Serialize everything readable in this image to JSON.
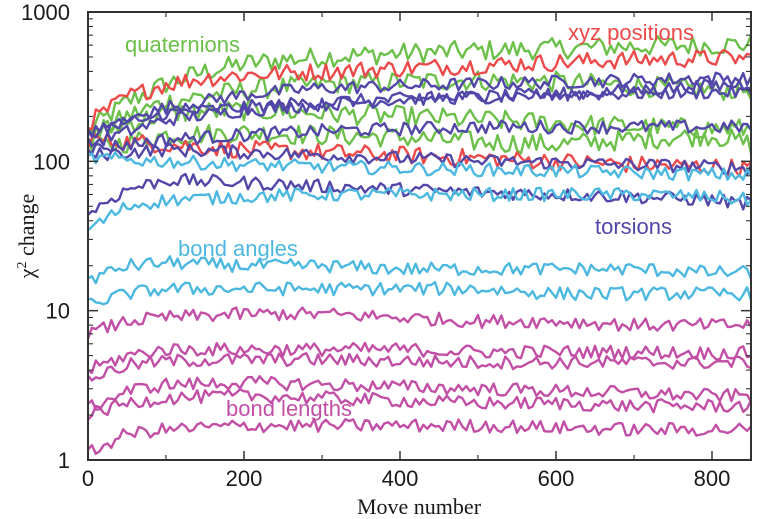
{
  "chart_data": {
    "type": "line",
    "xlabel": "Move number",
    "ylabel_base": "χ",
    "ylabel_sup": "2",
    "ylabel_rest": " change",
    "xlim": [
      0,
      850
    ],
    "ylim": [
      1,
      1000
    ],
    "yscale": "log",
    "grid": false,
    "x_ticks": [
      0,
      200,
      400,
      600,
      800
    ],
    "x_tick_labels": [
      "0",
      "200",
      "400",
      "600",
      "800"
    ],
    "y_ticks": [
      1,
      10,
      100,
      1000
    ],
    "y_tick_labels": [
      "1",
      "10",
      "100",
      "1000"
    ],
    "groups": [
      {
        "label": "quaternions",
        "color": "#6cc04a"
      },
      {
        "label": "xyz positions",
        "color": "#ec4a4a"
      },
      {
        "label": "torsions",
        "color": "#5247a8"
      },
      {
        "label": "bond angles",
        "color": "#4cb8e0"
      },
      {
        "label": "bond lengths",
        "color": "#c24fa6"
      }
    ],
    "series": [
      {
        "group": "quaternions",
        "x": [
          0,
          50,
          100,
          150,
          200,
          250,
          300,
          400,
          500,
          600,
          700,
          800,
          850
        ],
        "values": [
          160,
          250,
          330,
          400,
          450,
          480,
          500,
          530,
          550,
          570,
          590,
          600,
          610
        ]
      },
      {
        "group": "quaternions",
        "x": [
          0,
          50,
          100,
          200,
          300,
          400,
          500,
          600,
          700,
          800,
          850
        ],
        "values": [
          140,
          200,
          250,
          300,
          330,
          340,
          350,
          340,
          320,
          300,
          300
        ]
      },
      {
        "group": "quaternions",
        "x": [
          0,
          100,
          200,
          300,
          400,
          500,
          600,
          700,
          800,
          850
        ],
        "values": [
          120,
          150,
          155,
          150,
          145,
          135,
          130,
          140,
          150,
          130
        ]
      },
      {
        "group": "quaternions",
        "x": [
          0,
          100,
          200,
          300,
          400,
          500,
          600,
          700,
          800,
          850
        ],
        "values": [
          150,
          210,
          220,
          210,
          200,
          190,
          180,
          170,
          165,
          165
        ]
      },
      {
        "group": "xyz positions",
        "x": [
          0,
          50,
          100,
          150,
          200,
          300,
          400,
          500,
          600,
          700,
          800,
          850
        ],
        "values": [
          180,
          270,
          330,
          360,
          380,
          400,
          420,
          440,
          460,
          480,
          490,
          490
        ]
      },
      {
        "group": "xyz positions",
        "x": [
          0,
          100,
          200,
          300,
          400,
          500,
          600,
          700,
          800,
          850
        ],
        "values": [
          140,
          130,
          120,
          115,
          110,
          105,
          100,
          95,
          92,
          90
        ]
      },
      {
        "group": "torsions",
        "x": [
          0,
          100,
          200,
          300,
          400,
          500,
          600,
          700,
          800,
          850
        ],
        "values": [
          150,
          230,
          280,
          310,
          320,
          330,
          340,
          350,
          360,
          360
        ]
      },
      {
        "group": "torsions",
        "x": [
          0,
          100,
          200,
          300,
          400,
          500,
          600,
          700,
          800,
          850
        ],
        "values": [
          130,
          190,
          220,
          240,
          260,
          270,
          280,
          285,
          290,
          290
        ]
      },
      {
        "group": "torsions",
        "x": [
          0,
          100,
          200,
          300,
          400,
          500,
          600,
          700,
          800,
          850
        ],
        "values": [
          160,
          210,
          230,
          250,
          260,
          270,
          280,
          300,
          320,
          330
        ]
      },
      {
        "group": "torsions",
        "x": [
          0,
          100,
          200,
          300,
          400,
          500,
          600,
          700,
          800,
          850
        ],
        "values": [
          120,
          140,
          150,
          160,
          165,
          170,
          170,
          170,
          170,
          170
        ]
      },
      {
        "group": "torsions",
        "x": [
          0,
          100,
          200,
          300,
          400,
          500,
          600,
          700,
          800,
          850
        ],
        "values": [
          110,
          120,
          115,
          110,
          105,
          100,
          98,
          95,
          92,
          90
        ]
      },
      {
        "group": "torsions",
        "x": [
          0,
          50,
          100,
          200,
          300,
          400,
          500,
          600,
          700,
          800,
          850
        ],
        "values": [
          45,
          65,
          75,
          72,
          68,
          65,
          62,
          60,
          58,
          55,
          52
        ]
      },
      {
        "group": "bond angles",
        "x": [
          0,
          100,
          200,
          300,
          400,
          500,
          600,
          700,
          800,
          850
        ],
        "values": [
          105,
          100,
          95,
          92,
          90,
          88,
          86,
          84,
          82,
          80
        ]
      },
      {
        "group": "bond angles",
        "x": [
          0,
          50,
          100,
          200,
          300,
          400,
          500,
          600,
          700,
          800,
          850
        ],
        "values": [
          35,
          50,
          55,
          58,
          60,
          60,
          60,
          60,
          60,
          58,
          55
        ]
      },
      {
        "group": "bond angles",
        "x": [
          0,
          50,
          100,
          200,
          300,
          400,
          500,
          600,
          700,
          800,
          850
        ],
        "values": [
          16,
          20,
          21,
          20,
          20,
          19,
          19,
          19,
          19,
          18,
          18
        ]
      },
      {
        "group": "bond angles",
        "x": [
          0,
          50,
          100,
          200,
          300,
          400,
          500,
          600,
          700,
          800,
          850
        ],
        "values": [
          11,
          13,
          14,
          14,
          14,
          14,
          14,
          13,
          13,
          13,
          13
        ]
      },
      {
        "group": "bond lengths",
        "x": [
          0,
          50,
          100,
          200,
          300,
          400,
          500,
          600,
          700,
          800,
          850
        ],
        "values": [
          7,
          8.5,
          9,
          9.5,
          9.5,
          9,
          8.5,
          8.5,
          8,
          8,
          8
        ]
      },
      {
        "group": "bond lengths",
        "x": [
          0,
          50,
          100,
          200,
          300,
          400,
          500,
          600,
          700,
          800,
          850
        ],
        "values": [
          4,
          5,
          5.5,
          5.5,
          5.5,
          5.5,
          5.3,
          5.3,
          5.3,
          5.2,
          5.2
        ]
      },
      {
        "group": "bond lengths",
        "x": [
          0,
          50,
          100,
          200,
          300,
          400,
          500,
          600,
          700,
          800,
          850
        ],
        "values": [
          3.5,
          4.3,
          4.6,
          4.7,
          4.7,
          4.6,
          4.5,
          4.5,
          4.5,
          4.5,
          4.5
        ]
      },
      {
        "group": "bond lengths",
        "x": [
          0,
          50,
          100,
          200,
          300,
          400,
          500,
          600,
          700,
          800,
          850
        ],
        "values": [
          2.2,
          2.9,
          3.2,
          3.3,
          3.2,
          3.1,
          3.0,
          2.9,
          2.8,
          2.7,
          2.7
        ]
      },
      {
        "group": "bond lengths",
        "x": [
          0,
          50,
          100,
          200,
          300,
          400,
          500,
          600,
          700,
          800,
          850
        ],
        "values": [
          2.0,
          2.4,
          2.6,
          2.7,
          2.6,
          2.5,
          2.4,
          2.4,
          2.3,
          2.3,
          2.3
        ]
      },
      {
        "group": "bond lengths",
        "x": [
          0,
          50,
          100,
          200,
          300,
          400,
          500,
          600,
          700,
          800,
          850
        ],
        "values": [
          1.1,
          1.5,
          1.6,
          1.7,
          1.7,
          1.7,
          1.7,
          1.65,
          1.6,
          1.6,
          1.6
        ]
      }
    ]
  }
}
